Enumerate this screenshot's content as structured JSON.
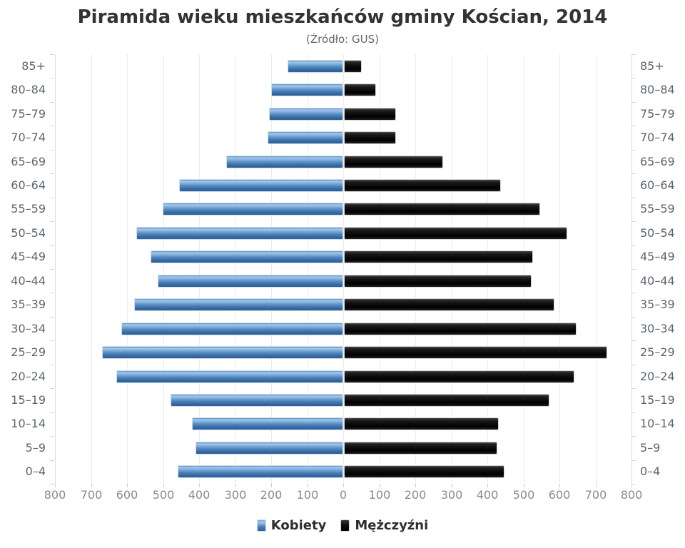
{
  "title": "Piramida wieku mieszkańców gminy Kościan, 2014",
  "subtitle": "(Źródło: GUS)",
  "legend": {
    "kobiety": "Kobiety",
    "mezczyzni": "Mężczyźni"
  },
  "colors": {
    "kobiety": "#4d82ba",
    "mezczyzni": "#111111",
    "grid": "#ececec",
    "axis_text": "#8a8a8a",
    "category_text": "#5b6570",
    "title_text": "#333333"
  },
  "chart_data": {
    "type": "bar",
    "variant": "population-pyramid",
    "title": "Piramida wieku mieszkańców gminy Kościan, 2014",
    "subtitle": "(Źródło: GUS)",
    "xlabel": "",
    "ylabel": "",
    "grid": true,
    "legend_position": "bottom",
    "categories": [
      "85+",
      "80–84",
      "75–79",
      "70–74",
      "65–69",
      "60–64",
      "55–59",
      "50–54",
      "45–49",
      "40–44",
      "35–39",
      "30–34",
      "25–29",
      "20–24",
      "15–19",
      "10–14",
      "5–9",
      "0–4"
    ],
    "series": [
      {
        "name": "Kobiety",
        "side": "left",
        "color": "#4d82ba",
        "values": [
          155,
          200,
          205,
          210,
          325,
          455,
          500,
          575,
          535,
          515,
          580,
          615,
          670,
          630,
          480,
          420,
          410,
          460
        ]
      },
      {
        "name": "Mężczyźni",
        "side": "right",
        "color": "#111111",
        "values": [
          50,
          90,
          145,
          145,
          275,
          435,
          545,
          620,
          525,
          520,
          585,
          645,
          730,
          640,
          570,
          430,
          425,
          445
        ]
      }
    ],
    "x_axis": {
      "min": -800,
      "max": 800,
      "tick_step": 100,
      "tick_values": [
        -800,
        -700,
        -600,
        -500,
        -400,
        -300,
        -200,
        -100,
        0,
        100,
        200,
        300,
        400,
        500,
        600,
        700,
        800
      ],
      "tick_labels": [
        "800",
        "700",
        "600",
        "500",
        "400",
        "300",
        "200",
        "100",
        "0",
        "100",
        "200",
        "300",
        "400",
        "500",
        "600",
        "700",
        "800"
      ]
    }
  }
}
